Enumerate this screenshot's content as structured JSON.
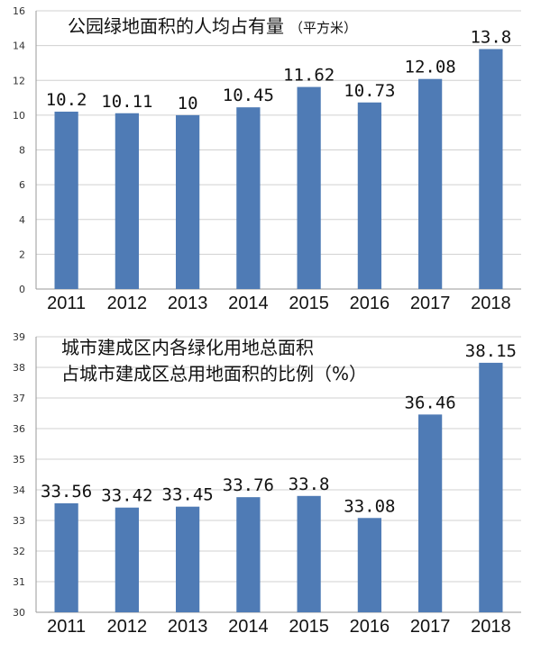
{
  "colors": {
    "bar": "#4f7bb5",
    "grid": "#d0d0d0",
    "axis": "#9a9a9a"
  },
  "chart_data": [
    {
      "type": "bar",
      "title": "公园绿地面积的人均占有量",
      "unit": "（平方米）",
      "categories": [
        "2011",
        "2012",
        "2013",
        "2014",
        "2015",
        "2016",
        "2017",
        "2018"
      ],
      "values": [
        10.2,
        10.11,
        10,
        10.45,
        11.62,
        10.73,
        12.08,
        13.8
      ],
      "value_labels": [
        "10.2",
        "10.11",
        "10",
        "10.45",
        "11.62",
        "10.73",
        "12.08",
        "13.8"
      ],
      "ylim": [
        0,
        16
      ],
      "yticks": [
        0,
        2,
        4,
        6,
        8,
        10,
        12,
        14,
        16
      ],
      "grid": true
    },
    {
      "type": "bar",
      "title_lines": [
        "城市建成区内各绿化用地总面积",
        "占城市建成区总用地面积的比例（%）"
      ],
      "categories": [
        "2011",
        "2012",
        "2013",
        "2014",
        "2015",
        "2016",
        "2017",
        "2018"
      ],
      "values": [
        33.56,
        33.42,
        33.45,
        33.76,
        33.8,
        33.08,
        36.46,
        38.15
      ],
      "value_labels": [
        "33.56",
        "33.42",
        "33.45",
        "33.76",
        "33.8",
        "33.08",
        "36.46",
        "38.15"
      ],
      "ylim": [
        30,
        39
      ],
      "yticks": [
        30,
        31,
        32,
        33,
        34,
        35,
        36,
        37,
        38,
        39
      ],
      "grid": true
    }
  ]
}
